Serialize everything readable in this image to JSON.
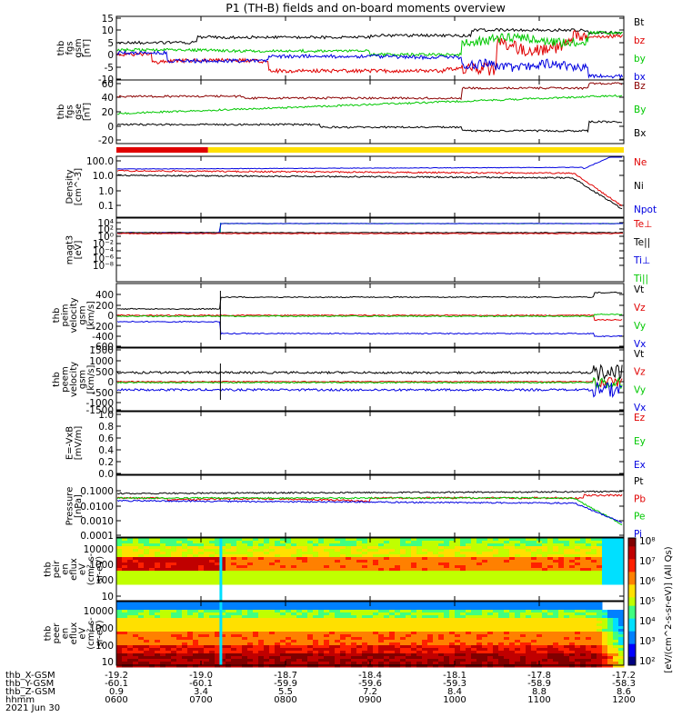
{
  "title": "P1 (TH-B) fields and on-board moments overview",
  "chart_data": {
    "type": "line",
    "x_range": [
      "2021-06-30 06:00",
      "2021-06-30 12:00"
    ],
    "panels": [
      {
        "id": "fgs_gsm",
        "ylabel": [
          "thb",
          "fgs",
          "gsm",
          "[nT]"
        ],
        "yrange": [
          -10,
          15
        ],
        "scale": "linear",
        "ticks": [
          "15",
          "10",
          "5",
          "0",
          "-5",
          "-10"
        ],
        "legend": [
          {
            "name": "Bt",
            "color": "#000000"
          },
          {
            "name": "bz",
            "color": "#e00000"
          },
          {
            "name": "by",
            "color": "#00c800"
          },
          {
            "name": "bx",
            "color": "#0000e0"
          }
        ]
      },
      {
        "id": "fgs_gse",
        "ylabel": [
          "thb",
          "fgs",
          "gse",
          "[nT]"
        ],
        "yrange": [
          -30,
          60
        ],
        "scale": "linear",
        "ticks": [
          "60",
          "40",
          "20",
          "0",
          "-20"
        ],
        "legend": [
          {
            "name": "Bz",
            "color": "#8b0000"
          },
          {
            "name": "By",
            "color": "#00c800"
          },
          {
            "name": "Bx",
            "color": "#000000"
          }
        ]
      },
      {
        "id": "mode_bar",
        "segments": [
          {
            "from": "06:00",
            "to": "07:05",
            "color": "#e00000"
          },
          {
            "from": "07:05",
            "to": "12:00",
            "color": "#ffe000"
          }
        ]
      },
      {
        "id": "density",
        "ylabel": [
          "Density",
          "[cm^-3]"
        ],
        "yrange": [
          0.01,
          200
        ],
        "scale": "log",
        "ticks": [
          "100.0",
          "10.0",
          "1.0",
          "0.1"
        ],
        "legend": [
          {
            "name": "Ne",
            "color": "#e00000"
          },
          {
            "name": "Ni",
            "color": "#000000"
          },
          {
            "name": "Npot",
            "color": "#0000e0"
          }
        ]
      },
      {
        "id": "temperature",
        "ylabel": [
          "magt3",
          "[eV]"
        ],
        "ticks": [
          "10⁴",
          "10²",
          "10⁰",
          "10⁻²",
          "10⁻⁴",
          "10⁻⁶",
          "10⁻⁸"
        ],
        "legend": [
          {
            "name": "Te⊥",
            "color": "#e00000"
          },
          {
            "name": "Te||",
            "color": "#000000"
          },
          {
            "name": "Ti⊥",
            "color": "#0000e0"
          },
          {
            "name": "Ti||",
            "color": "#00c800"
          }
        ]
      },
      {
        "id": "peim_velocity",
        "ylabel": [
          "thb",
          "peim",
          "velocity",
          "gsm",
          "[km/s]"
        ],
        "yrange": [
          -600,
          500
        ],
        "scale": "linear",
        "ticks": [
          "400",
          "200",
          "0",
          "-200",
          "-400",
          "-600"
        ],
        "legend": [
          {
            "name": "Vt",
            "color": "#000000"
          },
          {
            "name": "Vz",
            "color": "#e00000"
          },
          {
            "name": "Vy",
            "color": "#00c800"
          },
          {
            "name": "Vx",
            "color": "#0000e0"
          }
        ]
      },
      {
        "id": "peem_velocity",
        "ylabel": [
          "thb",
          "peem",
          "velocity",
          "gsm",
          "[km/s]"
        ],
        "yrange": [
          -1500,
          1500
        ],
        "scale": "linear",
        "ticks": [
          "1500",
          "1000",
          "500",
          "0",
          "-500",
          "-1000",
          "-1500"
        ],
        "legend": [
          {
            "name": "Vt",
            "color": "#000000"
          },
          {
            "name": "Vz",
            "color": "#e00000"
          },
          {
            "name": "Vy",
            "color": "#00c800"
          },
          {
            "name": "Vx",
            "color": "#0000e0"
          }
        ]
      },
      {
        "id": "efield",
        "ylabel": [
          "E=-VxB",
          "[mV/m]"
        ],
        "yrange": [
          0,
          1
        ],
        "scale": "linear",
        "ticks": [
          "1.0",
          "0.8",
          "0.6",
          "0.4",
          "0.2",
          "0.0"
        ],
        "legend": [
          {
            "name": "Ez",
            "color": "#e00000"
          },
          {
            "name": "Ey",
            "color": "#00c800"
          },
          {
            "name": "Ex",
            "color": "#0000e0"
          }
        ]
      },
      {
        "id": "pressure",
        "ylabel": [
          "Pressure",
          "[nPa]"
        ],
        "yrange": [
          0.0003,
          0.3
        ],
        "scale": "log",
        "ticks": [
          "0.1000",
          "0.0100",
          "0.0010",
          "0.0001"
        ],
        "legend": [
          {
            "name": "Pt",
            "color": "#000000"
          },
          {
            "name": "Pb",
            "color": "#e00000"
          },
          {
            "name": "Pe",
            "color": "#00c800"
          },
          {
            "name": "Pi",
            "color": "#0000e0"
          }
        ]
      },
      {
        "id": "peir_eflux",
        "type": "heatmap",
        "ylabel": [
          "thb",
          "peir",
          "en",
          "eflux",
          "eV",
          "(cm²-s-",
          "sr-eV)"
        ],
        "scale": "log",
        "ticks": [
          "10000",
          "1000",
          "100",
          "10"
        ]
      },
      {
        "id": "peer_eflux",
        "type": "heatmap",
        "ylabel": [
          "thb",
          "peer",
          "en",
          "eflux",
          "eV",
          "(cm²-s-",
          "sr-eV)"
        ],
        "scale": "log",
        "ticks": [
          "10000",
          "1000",
          "100",
          "10"
        ]
      }
    ],
    "colorbar": {
      "label": "[eV/(cm^2-s-sr-eV)] (All Qs)",
      "ticks": [
        "10⁸",
        "10⁷",
        "10⁶",
        "10⁵",
        "10⁴",
        "10³",
        "10²"
      ]
    },
    "x_axis": {
      "rows": [
        "thb_X-GSM",
        "thb_Y-GSM",
        "thb_Z-GSM",
        "hhmm",
        "2021 Jun 30"
      ],
      "columns": [
        {
          "x": "-19.2",
          "y": "-60.1",
          "z": "0.9",
          "t": "0600"
        },
        {
          "x": "-19.0",
          "y": "-60.1",
          "z": "3.4",
          "t": "0700"
        },
        {
          "x": "-18.7",
          "y": "-59.9",
          "z": "5.5",
          "t": "0800"
        },
        {
          "x": "-18.4",
          "y": "-59.6",
          "z": "7.2",
          "t": "0900"
        },
        {
          "x": "-18.1",
          "y": "-59.3",
          "z": "8.4",
          "t": "1000"
        },
        {
          "x": "-17.8",
          "y": "-58.9",
          "z": "8.8",
          "t": "1100"
        },
        {
          "x": "-17.2",
          "y": "-58.3",
          "z": "8.6",
          "t": "1200"
        }
      ]
    }
  }
}
